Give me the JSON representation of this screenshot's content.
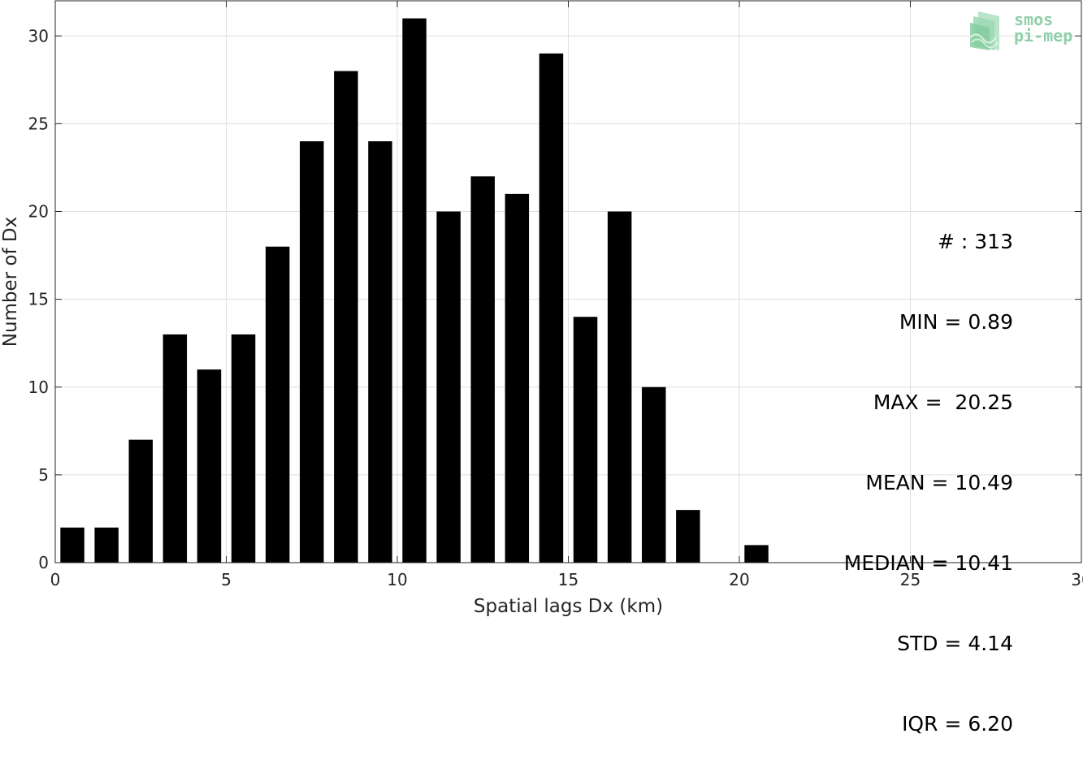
{
  "chart_data": {
    "type": "bar",
    "xlabel": "Spatial lags Dx (km)",
    "ylabel": "Number of Dx",
    "xlim": [
      0,
      30
    ],
    "ylim": [
      0,
      32
    ],
    "xticks": [
      0,
      5,
      10,
      15,
      20,
      25,
      30
    ],
    "yticks": [
      0,
      5,
      10,
      15,
      20,
      25,
      30
    ],
    "grid": true,
    "bar_color": "#000000",
    "bin_width": 1,
    "bins": [
      {
        "x": 0.5,
        "value": 2
      },
      {
        "x": 1.5,
        "value": 2
      },
      {
        "x": 2.5,
        "value": 7
      },
      {
        "x": 3.5,
        "value": 13
      },
      {
        "x": 4.5,
        "value": 11
      },
      {
        "x": 5.5,
        "value": 13
      },
      {
        "x": 6.5,
        "value": 18
      },
      {
        "x": 7.5,
        "value": 24
      },
      {
        "x": 8.5,
        "value": 28
      },
      {
        "x": 9.5,
        "value": 24
      },
      {
        "x": 10.5,
        "value": 31
      },
      {
        "x": 11.5,
        "value": 20
      },
      {
        "x": 12.5,
        "value": 22
      },
      {
        "x": 13.5,
        "value": 21
      },
      {
        "x": 14.5,
        "value": 29
      },
      {
        "x": 15.5,
        "value": 14
      },
      {
        "x": 16.5,
        "value": 20
      },
      {
        "x": 17.5,
        "value": 10
      },
      {
        "x": 18.5,
        "value": 3
      },
      {
        "x": 20.5,
        "value": 1
      }
    ],
    "annotations": [
      "# : 313",
      "MIN = 0.89",
      "MAX =  20.25",
      "MEAN = 10.49",
      "MEDIAN = 10.41",
      "STD = 4.14",
      "IQR = 6.20"
    ]
  },
  "logo": {
    "line1": "smos",
    "line2": "pi-mep",
    "color": "#8fd0aa"
  }
}
